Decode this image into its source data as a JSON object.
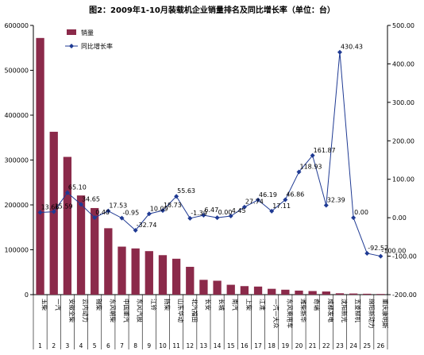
{
  "chart_data": {
    "type": "bar",
    "title": "图2：2009年1-10月装载机企业销量排名及同比增长率（单位：台）",
    "categories": [
      "玉柴",
      "一汽",
      "安徽全柴",
      "云内动力",
      "锡柴",
      "东风朝柴",
      "中国重汽",
      "东风汽股",
      "江铃",
      "扬柴",
      "山东华动",
      "北汽福田",
      "长安",
      "长城",
      "南汽",
      "上柴",
      "江淮",
      "一汽一大众",
      "东风乘用车",
      "潍柴新华",
      "奇瑞",
      "成都发电",
      "沈阳新光",
      "五菱柳机",
      "绵阳新动力",
      "重庆康明斯"
    ],
    "rank_numbers": [
      "1",
      "2",
      "3",
      "4",
      "5",
      "6",
      "7",
      "8",
      "9",
      "10",
      "11",
      "12",
      "13",
      "14",
      "15",
      "16",
      "17",
      "18",
      "19",
      "20",
      "21",
      "22",
      "23",
      "24",
      "25",
      "26"
    ],
    "series": [
      {
        "name": "销量",
        "axis": "left",
        "color": "#8B2A4A",
        "values": [
          572000,
          363000,
          307000,
          221000,
          193000,
          148000,
          107000,
          103000,
          97000,
          88000,
          80000,
          62000,
          33000,
          31000,
          22000,
          19000,
          18000,
          13000,
          11000,
          9000,
          8000,
          7000,
          3000,
          2500,
          2000,
          1500
        ]
      },
      {
        "name": "同比增长率",
        "axis": "right",
        "color": "#1F3A93",
        "values": [
          13.66,
          15.59,
          65.1,
          34.65,
          0.4,
          17.53,
          -0.95,
          -32.74,
          10.09,
          18.73,
          55.63,
          -1.39,
          6.47,
          0.0,
          4.45,
          27.74,
          46.19,
          17.11,
          46.86,
          118.93,
          161.87,
          32.39,
          430.43,
          0.0,
          -92.52,
          -100.0
        ],
        "labels": [
          "13.66",
          "15.59",
          "65.10",
          "34.65",
          "0.40",
          "17.53",
          "-0.95",
          "-32.74",
          "10.09",
          "18.73",
          "55.63",
          "-1.39",
          "6.47",
          "0.00",
          "4.45",
          "27.74",
          "46.19",
          "17.11",
          "46.86",
          "118.93",
          "161.87",
          "32.39",
          "430.43",
          "0.00",
          "-92.52",
          "-100.00"
        ]
      }
    ],
    "y_left": {
      "lim": [
        0,
        600000
      ],
      "ticks": [
        0,
        100000,
        200000,
        300000,
        400000,
        500000,
        600000
      ],
      "tick_labels": [
        "0",
        "100000",
        "200000",
        "300000",
        "400000",
        "500000",
        "600000"
      ]
    },
    "y_right": {
      "lim": [
        -200,
        500
      ],
      "ticks": [
        -200,
        -100,
        0,
        100,
        200,
        300,
        400,
        500
      ],
      "tick_labels": [
        "-200.00",
        "-100.00",
        "0.00",
        "100.00",
        "200.00",
        "300.00",
        "400.00",
        "500.00"
      ]
    },
    "legend": {
      "placement": "top-left",
      "items": [
        "销量",
        "同比增长率"
      ]
    },
    "grid": false
  }
}
